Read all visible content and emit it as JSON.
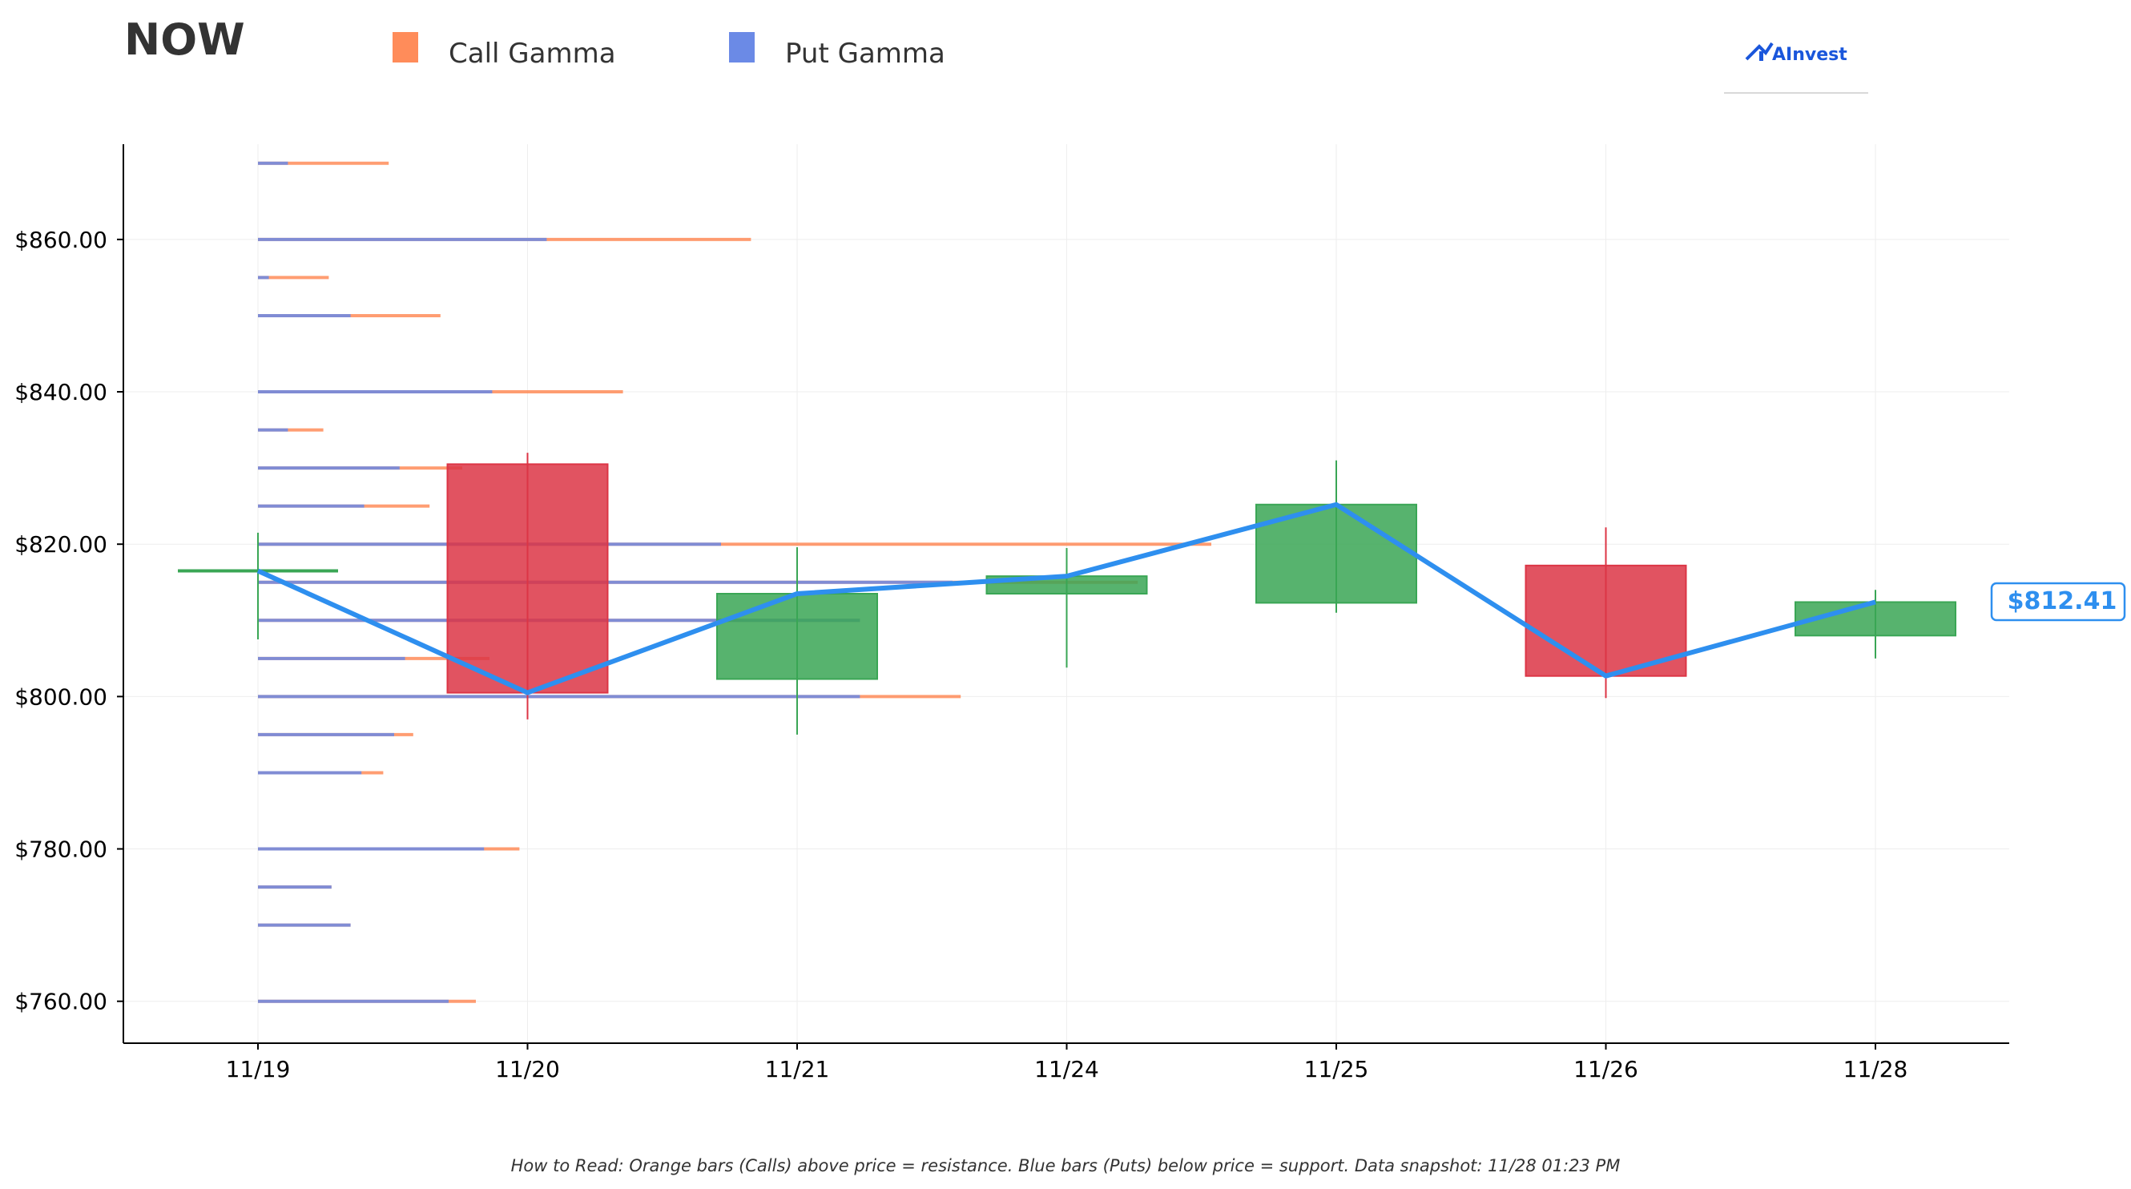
{
  "header": {
    "ticker": "NOW",
    "brand": "AInvest"
  },
  "legend": [
    {
      "label": "Call Gamma",
      "color": "#ff8c5a"
    },
    {
      "label": "Put Gamma",
      "color": "#6b8ae6"
    }
  ],
  "footer": "How to Read: Orange bars (Calls) above price = resistance. Blue bars (Puts) below price = support. Data snapshot: 11/28 01:23 PM",
  "chart_data": {
    "type": "candlestick",
    "categories": [
      "11/19",
      "11/20",
      "11/21",
      "11/24",
      "11/25",
      "11/26",
      "11/28"
    ],
    "ylim": [
      754.5,
      872.5
    ],
    "yticks": [
      760,
      780,
      800,
      820,
      840,
      860
    ],
    "ytick_labels": [
      "$760.00",
      "$780.00",
      "$800.00",
      "$820.00",
      "$840.00",
      "$860.00"
    ],
    "grid": true,
    "colors": {
      "up": "#3aa655",
      "down": "#dc3545",
      "line": "#2e8fef",
      "call": "#ff8c5a",
      "put": "#6b8ae6"
    },
    "candles": [
      {
        "date": "11/19",
        "open": 816.5,
        "close": 816.5,
        "high": 821.5,
        "low": 807.5
      },
      {
        "date": "11/20",
        "open": 830.5,
        "close": 800.5,
        "high": 832.0,
        "low": 797.0
      },
      {
        "date": "11/21",
        "open": 802.3,
        "close": 813.5,
        "high": 819.6,
        "low": 795.0
      },
      {
        "date": "11/24",
        "open": 813.5,
        "close": 815.8,
        "high": 819.5,
        "low": 803.8
      },
      {
        "date": "11/25",
        "open": 812.3,
        "close": 825.2,
        "high": 831.0,
        "low": 811.0
      },
      {
        "date": "11/26",
        "open": 817.2,
        "close": 802.7,
        "high": 822.2,
        "low": 799.8
      },
      {
        "date": "11/28",
        "open": 808.0,
        "close": 812.4,
        "high": 814.0,
        "low": 805.0
      }
    ],
    "close_line": [
      816.5,
      800.5,
      813.5,
      815.8,
      825.2,
      802.7,
      812.41
    ],
    "last_price_label": "$812.41",
    "gamma_levels": [
      {
        "strike": 870,
        "put": 0.11,
        "call": 0.48
      },
      {
        "strike": 860,
        "put": 1.06,
        "call": 1.81
      },
      {
        "strike": 855,
        "put": 0.04,
        "call": 0.26
      },
      {
        "strike": 850,
        "put": 0.34,
        "call": 0.67
      },
      {
        "strike": 840,
        "put": 0.86,
        "call": 1.34
      },
      {
        "strike": 835,
        "put": 0.11,
        "call": 0.24
      },
      {
        "strike": 830,
        "put": 0.52,
        "call": 0.75
      },
      {
        "strike": 825,
        "put": 0.39,
        "call": 0.63
      },
      {
        "strike": 820,
        "put": 1.7,
        "call": 3.5
      },
      {
        "strike": 815,
        "put": 2.55,
        "call": 3.23
      },
      {
        "strike": 810,
        "put": 2.21,
        "call": 2.21
      },
      {
        "strike": 805,
        "put": 0.54,
        "call": 0.85
      },
      {
        "strike": 800,
        "put": 2.21,
        "call": 2.58
      },
      {
        "strike": 795,
        "put": 0.5,
        "call": 0.57
      },
      {
        "strike": 790,
        "put": 0.38,
        "call": 0.46
      },
      {
        "strike": 780,
        "put": 0.83,
        "call": 0.96
      },
      {
        "strike": 775,
        "put": 0.27,
        "call": 0.27
      },
      {
        "strike": 770,
        "put": 0.34,
        "call": 0.34
      },
      {
        "strike": 760,
        "put": 0.7,
        "call": 0.8
      }
    ]
  }
}
